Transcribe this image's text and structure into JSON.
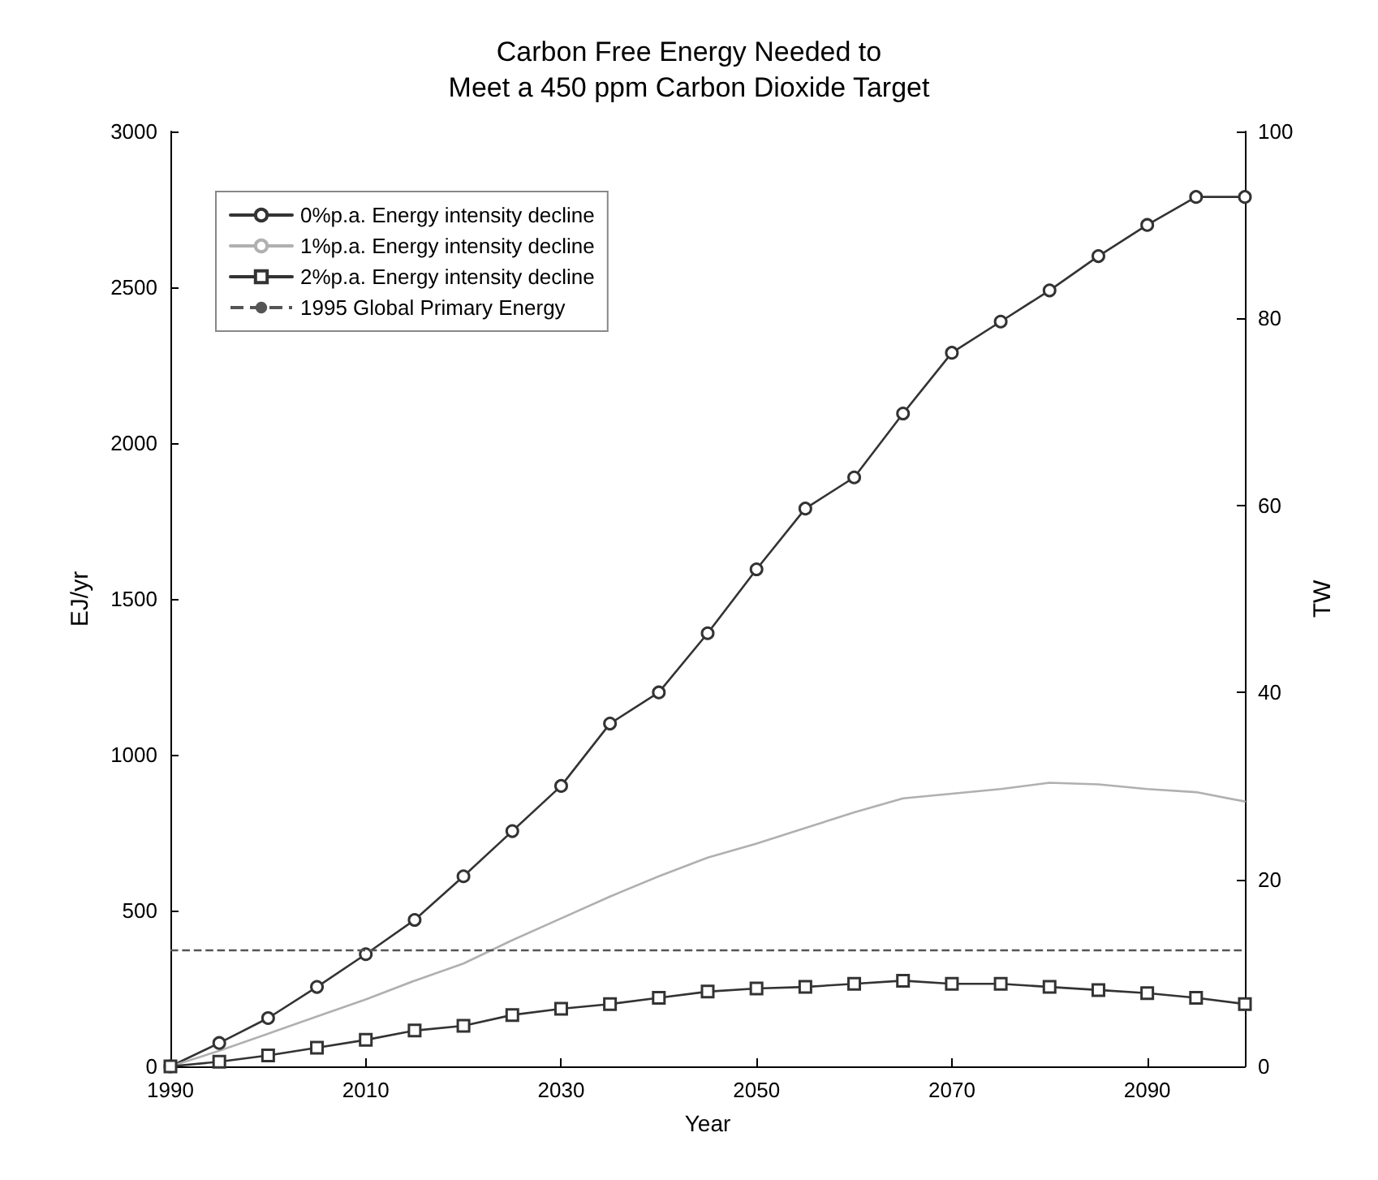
{
  "chart_data": {
    "type": "line",
    "title": "Carbon Free Energy Needed to\nMeet a 450 ppm Carbon Dioxide Target",
    "xlabel": "Year",
    "ylabel": "EJ/yr",
    "y2label": "TW",
    "x": [
      1990,
      1995,
      2000,
      2005,
      2010,
      2015,
      2020,
      2025,
      2030,
      2035,
      2040,
      2045,
      2050,
      2055,
      2060,
      2065,
      2070,
      2075,
      2080,
      2085,
      2090,
      2095,
      2100
    ],
    "series": [
      {
        "name": "0%p.a. Energy intensity decline",
        "color": "#333333",
        "marker": "circle",
        "values": [
          0,
          75,
          155,
          255,
          360,
          470,
          610,
          755,
          900,
          1100,
          1200,
          1390,
          1595,
          1790,
          1890,
          2095,
          2290,
          2390,
          2490,
          2600,
          2700,
          2790,
          2790
        ]
      },
      {
        "name": "1%p.a. Energy intensity decline",
        "color": "#b0b0b0",
        "marker": "none",
        "values": [
          0,
          50,
          105,
          160,
          215,
          275,
          330,
          405,
          475,
          545,
          610,
          670,
          715,
          765,
          815,
          860,
          875,
          890,
          910,
          905,
          890,
          880,
          850
        ]
      },
      {
        "name": "2%p.a. Energy intensity decline",
        "color": "#333333",
        "marker": "square",
        "values": [
          0,
          15,
          35,
          60,
          85,
          115,
          130,
          165,
          185,
          200,
          220,
          240,
          250,
          255,
          265,
          275,
          265,
          265,
          255,
          245,
          235,
          220,
          200
        ]
      }
    ],
    "ref_lines": [
      {
        "axis": "y",
        "value": 375,
        "label": "1995 Global Primary Energy",
        "color": "#555555",
        "line_style": "dashed"
      }
    ],
    "xlim": [
      1990,
      2100
    ],
    "xticks": [
      1990,
      2010,
      2030,
      2050,
      2070,
      2090
    ],
    "ylim": [
      0,
      3000
    ],
    "yticks": [
      0,
      500,
      1000,
      1500,
      2000,
      2500,
      3000
    ],
    "y2lim": [
      0,
      100
    ],
    "y2ticks": [
      0,
      20,
      40,
      60,
      80,
      100
    ],
    "grid": false,
    "legend": "top left",
    "line_style": "solid"
  }
}
